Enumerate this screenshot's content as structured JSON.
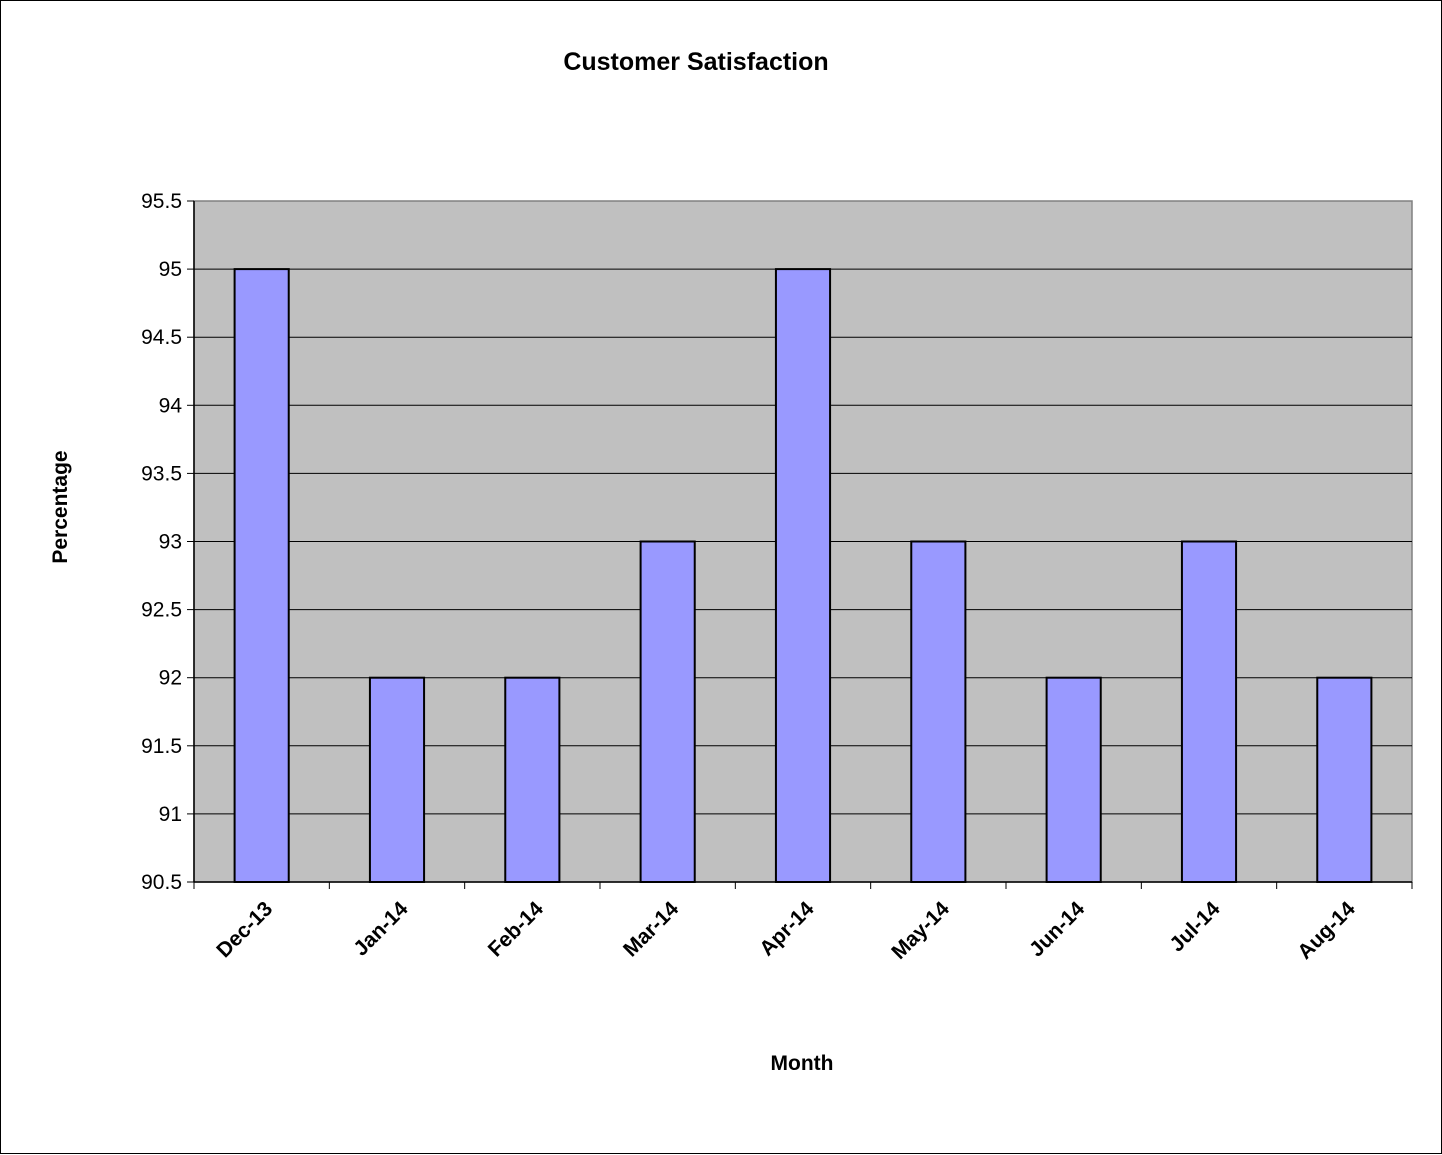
{
  "chart_data": {
    "type": "bar",
    "title": "Customer Satisfaction",
    "xlabel": "Month",
    "ylabel": "Percentage",
    "categories": [
      "Dec-13",
      "Jan-14",
      "Feb-14",
      "Mar-14",
      "Apr-14",
      "May-14",
      "Jun-14",
      "Jul-14",
      "Aug-14"
    ],
    "values": [
      95,
      92,
      92,
      93,
      95,
      93,
      92,
      93,
      92
    ],
    "ylim": [
      90.5,
      95.5
    ],
    "y_ticks": [
      "90.5",
      "91",
      "91.5",
      "92",
      "92.5",
      "93",
      "93.5",
      "94",
      "94.5",
      "95",
      "95.5"
    ],
    "grid": true,
    "legend": "none",
    "colors": {
      "bar_fill": "#9999ff",
      "plot_background": "#c0c0c0",
      "bar_outline": "#000000",
      "gridline": "#000000"
    }
  }
}
